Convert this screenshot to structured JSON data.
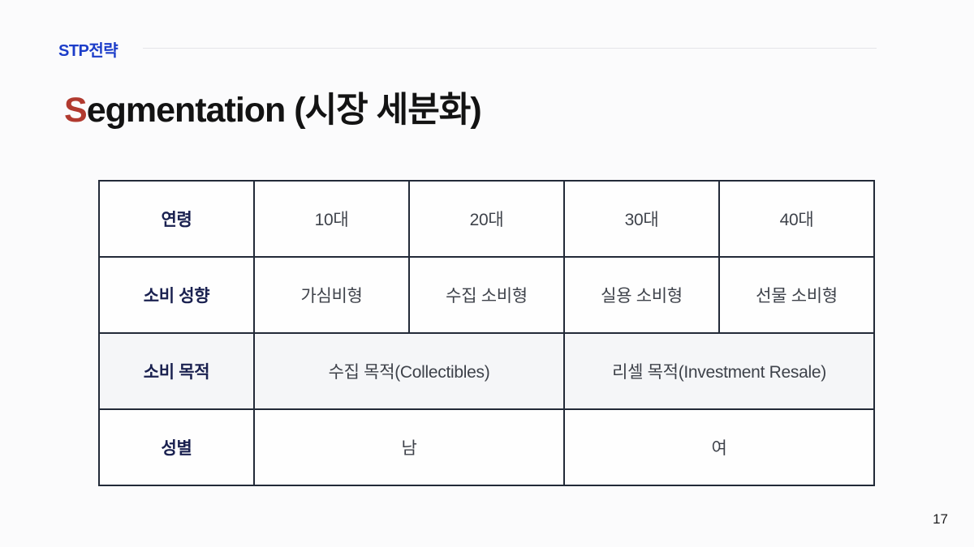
{
  "slide": {
    "eyebrow": "STP전략",
    "title": {
      "accent": "S",
      "rest": "egmentation (시장 세분화)"
    },
    "page_number": "17"
  },
  "table": {
    "rows": [
      {
        "header": "연령",
        "cells": [
          "10대",
          "20대",
          "30대",
          "40대"
        ]
      },
      {
        "header": "소비 성향",
        "cells": [
          "가심비형",
          "수집 소비형",
          "실용 소비형",
          "선물 소비형"
        ]
      },
      {
        "header": "소비 목적",
        "cells": [
          "수집 목적(Collectibles)",
          "리셀 목적(Investment Resale)"
        ],
        "merged": true,
        "shaded": true
      },
      {
        "header": "성별",
        "cells": [
          "남",
          "여"
        ],
        "merged": true,
        "shaded": false
      }
    ]
  },
  "colors": {
    "eyebrow_blue": "#1c3dc9",
    "title_accent_red": "#b13a2f",
    "title_black": "#131313",
    "table_border": "#222a38",
    "header_navy": "#1a2150",
    "body_gray": "#3e424a",
    "shaded_row_bg": "#f5f6f8",
    "divider_gray": "#e4e4e8",
    "slide_bg": "#fbfbfc"
  }
}
